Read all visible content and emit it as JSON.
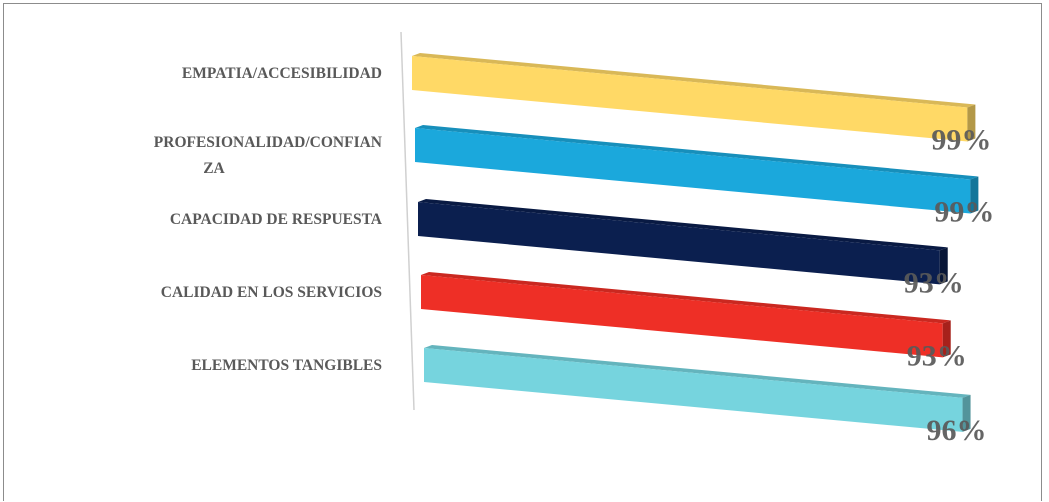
{
  "chart_data": {
    "type": "bar",
    "orientation": "horizontal",
    "style": "3d",
    "title": "",
    "xlabel": "",
    "ylabel": "",
    "categories": [
      "EMPATIA/ACCESIBILIDAD",
      "PROFESIONALIDAD/CONFIANZA",
      "CAPACIDAD DE RESPUESTA",
      "CALIDAD EN LOS SERVICIOS",
      "ELEMENTOS TANGIBLES"
    ],
    "category_label_lines": [
      [
        "EMPATIA/ACCESIBILIDAD"
      ],
      [
        "PROFESIONALIDAD/CONFIAN",
        "ZA"
      ],
      [
        "CAPACIDAD DE RESPUESTA"
      ],
      [
        "CALIDAD EN LOS SERVICIOS"
      ],
      [
        "ELEMENTOS TANGIBLES"
      ]
    ],
    "values": [
      99,
      99,
      93,
      93,
      96
    ],
    "data_labels": [
      "99%",
      "99%",
      "93%",
      "93%",
      "96%"
    ],
    "colors": [
      "#FFD966",
      "#1BA8DC",
      "#0B1F4F",
      "#EE2F26",
      "#76D4DE"
    ],
    "xlim": [
      0,
      100
    ],
    "unit": "%",
    "grid": false,
    "legend": "none"
  }
}
